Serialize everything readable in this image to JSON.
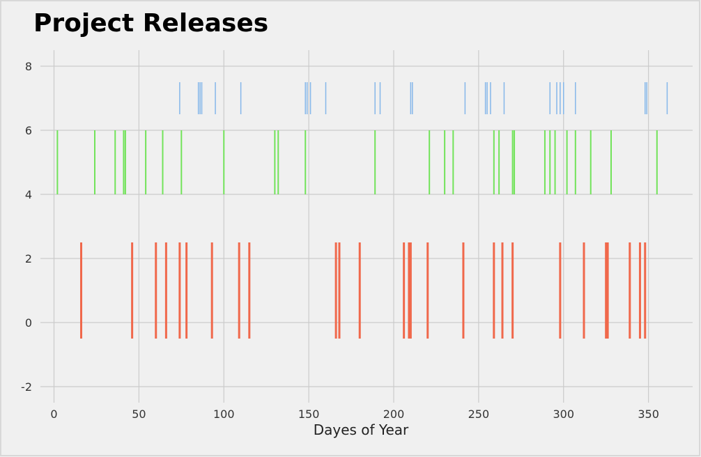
{
  "chart_data": {
    "type": "eventplot",
    "title": "Project Releases",
    "xlabel": "Dayes of Year",
    "ylabel": "",
    "xlim": [
      -8,
      376
    ],
    "ylim": [
      -2.5,
      8.5
    ],
    "xticks": [
      0,
      50,
      100,
      150,
      200,
      250,
      300,
      350
    ],
    "yticks": [
      -2,
      0,
      2,
      4,
      6,
      8
    ],
    "grid": true,
    "legend": "none",
    "colors": {
      "background": "#f0f0f0",
      "grid": "#cbcbcb",
      "frame": "#d8d8d8"
    },
    "series": [
      {
        "color": "#f0684b",
        "lineoffset": 1,
        "linelength": 3,
        "linewidth": 3,
        "values": [
          16,
          46,
          60,
          66,
          74,
          78,
          93,
          109,
          115,
          166,
          168,
          180,
          206,
          209,
          210,
          220,
          241,
          259,
          264,
          270,
          298,
          312,
          325,
          326,
          339,
          345,
          348
        ]
      },
      {
        "color": "#72e35a",
        "lineoffset": 5,
        "linelength": 2,
        "linewidth": 2,
        "values": [
          2,
          24,
          36,
          41,
          42,
          54,
          64,
          75,
          100,
          130,
          132,
          148,
          189,
          221,
          230,
          235,
          259,
          262,
          270,
          271,
          289,
          292,
          295,
          302,
          307,
          316,
          328,
          355
        ]
      },
      {
        "color": "#85b7ea",
        "lineoffset": 7,
        "linelength": 1,
        "linewidth": 1.5,
        "values": [
          74,
          85,
          86,
          87,
          95,
          110,
          148,
          149,
          151,
          160,
          189,
          192,
          210,
          211,
          242,
          254,
          255,
          257,
          265,
          292,
          296,
          298,
          300,
          307,
          348,
          349,
          361
        ]
      }
    ]
  }
}
